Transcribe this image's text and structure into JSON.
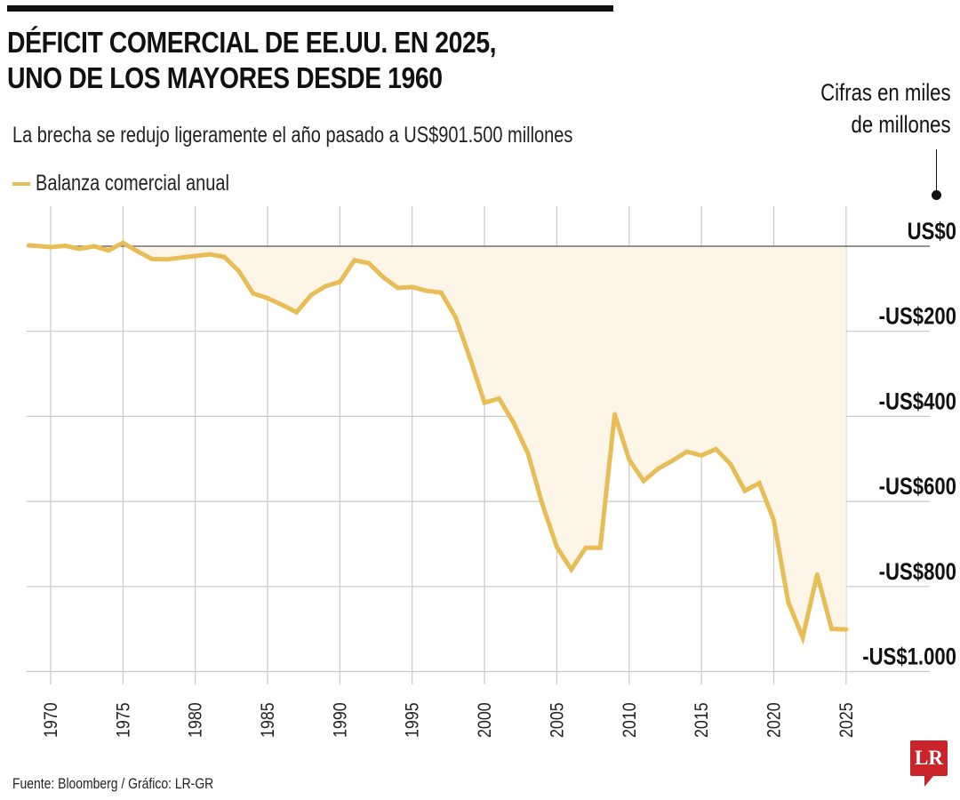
{
  "header": {
    "title_line1": "DÉFICIT COMERCIAL DE EE.UU. EN 2025,",
    "title_line2": "UNO DE LOS MAYORES DESDE 1960",
    "subtitle": "La brecha se redujo ligeramente el año pasado a US$901.500 millones",
    "units_line1": "Cifras en miles",
    "units_line2": "de millones"
  },
  "legend": {
    "label": "Balanza comercial anual",
    "color": "#e8bd55"
  },
  "footer": {
    "source": "Fuente: Bloomberg / Gráfico: LR-GR",
    "logo_text": "LR",
    "logo_color": "#c8242a"
  },
  "chart_data": {
    "type": "area",
    "title": "DÉFICIT COMERCIAL DE EE.UU. EN 2025, UNO DE LOS MAYORES DESDE 1960",
    "subtitle": "La brecha se redujo ligeramente el año pasado a US$901.500 millones",
    "xlabel": "",
    "ylabel": "Cifras en miles de millones",
    "ylim": [
      -1000,
      0
    ],
    "xlim": [
      1968.5,
      2025
    ],
    "grid": true,
    "legend_position": "top-left",
    "line_color": "#e8bd55",
    "fill_color": "#fcf5e8",
    "y_ticks": [
      0,
      -200,
      -400,
      -600,
      -800,
      -1000
    ],
    "y_tick_labels": [
      "US$0",
      "-US$200",
      "-US$400",
      "-US$600",
      "-US$800",
      "-US$1.000"
    ],
    "x_ticks": [
      1970,
      1975,
      1980,
      1985,
      1990,
      1995,
      2000,
      2005,
      2010,
      2015,
      2020,
      2025
    ],
    "x_tick_labels": [
      "1970",
      "1975",
      "1980",
      "1985",
      "1990",
      "1995",
      "2000",
      "2005",
      "2010",
      "2015",
      "2020",
      "2025"
    ],
    "series": [
      {
        "name": "Balanza comercial anual",
        "x": [
          1968.5,
          1970,
          1971,
          1972,
          1973,
          1974,
          1975,
          1976,
          1977,
          1978,
          1979,
          1980,
          1981,
          1982,
          1983,
          1984,
          1985,
          1986,
          1987,
          1988,
          1989,
          1990,
          1991,
          1992,
          1993,
          1994,
          1995,
          1996,
          1997,
          1998,
          1999,
          2000,
          2001,
          2002,
          2003,
          2004,
          2005,
          2006,
          2007,
          2008,
          2009,
          2010,
          2011,
          2012,
          2013,
          2014,
          2015,
          2016,
          2017,
          2018,
          2019,
          2020,
          2021,
          2022,
          2023,
          2024,
          2025
        ],
        "values": [
          2,
          -2,
          1,
          -6,
          0,
          -10,
          8,
          -12,
          -30,
          -31,
          -27,
          -23,
          -19,
          -25,
          -58,
          -111,
          -122,
          -138,
          -155,
          -115,
          -94,
          -84,
          -33,
          -40,
          -73,
          -98,
          -96,
          -105,
          -109,
          -167,
          -264,
          -368,
          -358,
          -414,
          -487,
          -607,
          -707,
          -760,
          -709,
          -709,
          -395,
          -502,
          -552,
          -523,
          -504,
          -483,
          -492,
          -477,
          -512,
          -575,
          -557,
          -644,
          -837,
          -920,
          -772,
          -900,
          -901
        ]
      }
    ]
  }
}
